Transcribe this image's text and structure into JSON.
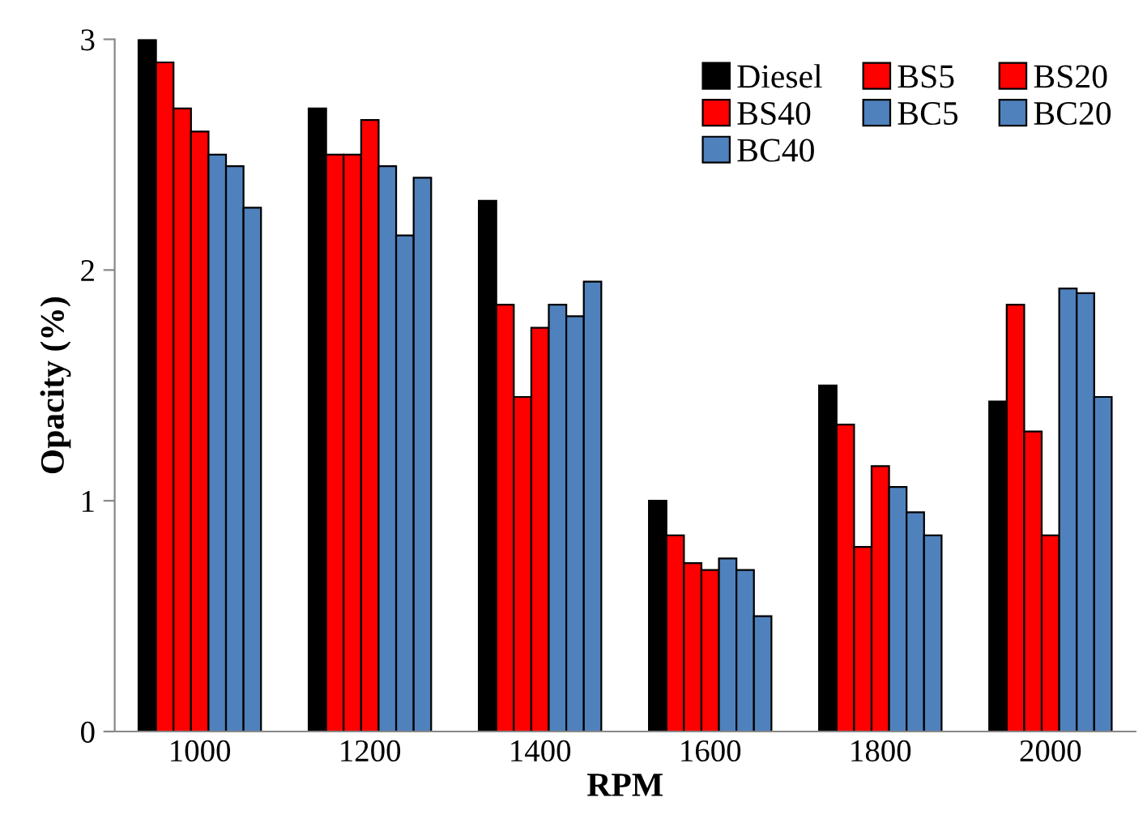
{
  "chart_data": {
    "type": "bar",
    "xlabel": "RPM",
    "ylabel": "Opacity (%)",
    "categories": [
      "1000",
      "1200",
      "1400",
      "1600",
      "1800",
      "2000"
    ],
    "series": [
      {
        "name": "Diesel",
        "color": "#000000",
        "values": [
          3.0,
          2.7,
          2.3,
          1.0,
          1.5,
          1.43
        ]
      },
      {
        "name": "BS5",
        "color": "#ff0000",
        "values": [
          2.9,
          2.5,
          1.85,
          0.85,
          1.33,
          1.85
        ]
      },
      {
        "name": "BS20",
        "color": "#ff0000",
        "values": [
          2.7,
          2.5,
          1.45,
          0.73,
          0.8,
          1.3
        ]
      },
      {
        "name": "BS40",
        "color": "#ff0000",
        "values": [
          2.6,
          2.65,
          1.75,
          0.7,
          1.15,
          0.85
        ]
      },
      {
        "name": "BC5",
        "color": "#4f81bd",
        "values": [
          2.5,
          2.45,
          1.85,
          0.75,
          1.06,
          1.92
        ]
      },
      {
        "name": "BC20",
        "color": "#4f81bd",
        "values": [
          2.45,
          2.15,
          1.8,
          0.7,
          0.95,
          1.9
        ]
      },
      {
        "name": "BC40",
        "color": "#4f81bd",
        "values": [
          2.27,
          2.4,
          1.95,
          0.5,
          0.85,
          1.45
        ]
      }
    ],
    "ylim": [
      0,
      3
    ],
    "yticks": [
      0,
      1,
      2,
      3
    ],
    "grid": false,
    "legend": "top right"
  }
}
